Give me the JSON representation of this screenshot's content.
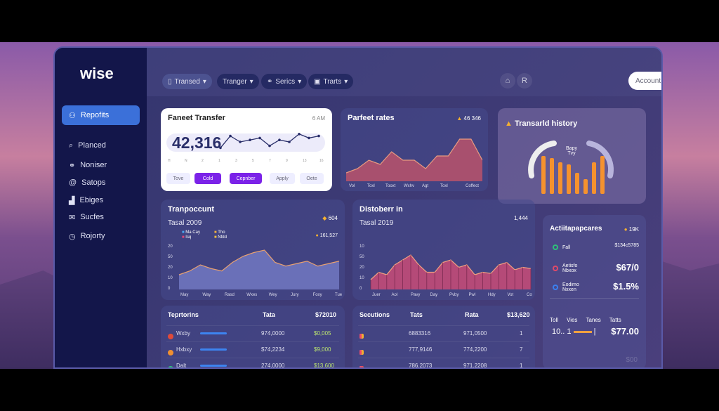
{
  "app": {
    "logo": "wise"
  },
  "sidebar": {
    "items": [
      {
        "label": "Repofits",
        "icon": "user-icon",
        "active": true
      },
      {
        "label": "Planced",
        "icon": "search-icon"
      },
      {
        "label": "Noniser",
        "icon": "link-icon"
      },
      {
        "label": "Satops",
        "icon": "at-icon"
      },
      {
        "label": "Ebiges",
        "icon": "chart-icon"
      },
      {
        "label": "Sucfes",
        "icon": "mail-icon"
      },
      {
        "label": "Rojorty",
        "icon": "clock-icon"
      }
    ]
  },
  "header": {
    "tabs": [
      {
        "label": "Transed",
        "icon": "document-icon"
      },
      {
        "label": "Tranger"
      },
      {
        "label": "Serics",
        "icon": "link-icon"
      },
      {
        "label": "Trarts",
        "icon": "calendar-icon"
      }
    ],
    "search": {
      "placeholder": "Account",
      "plus": "+"
    }
  },
  "transfer_card": {
    "title": "Faneet Transfer",
    "time": "6 AM",
    "value": "42,316",
    "x_labels": [
      "H",
      "N",
      "2",
      "1",
      "3",
      "5",
      "7",
      "9",
      "13",
      "16"
    ],
    "buttons": [
      "Tove",
      "Cold",
      "Cepnber",
      "Apply",
      "Oete"
    ]
  },
  "rates_card": {
    "title": "Parfeet rates",
    "badge": "46 346",
    "x_labels": [
      "Vol",
      "Toxl",
      "Tooxt",
      "Wxhv",
      "Agt",
      "Toxl",
      "Coffect"
    ]
  },
  "history_card": {
    "title": "Transarld history",
    "center_label": "Bapy",
    "center_sub": "Tvy"
  },
  "transpo_card": {
    "title": "Tranpoccunt",
    "subtitle": "Tasal 2009",
    "badge": "604",
    "badge2": "161,527",
    "legend": [
      {
        "label": "Ma Cay",
        "color": "#4aa8f0"
      },
      {
        "label": "Tho",
        "color": "#f0b040"
      },
      {
        "label": "Isq",
        "color": "#e04a7a"
      },
      {
        "label": "Nfdd",
        "color": "#f0c040"
      }
    ],
    "y_labels": [
      "0",
      "10",
      "20",
      "50",
      "20"
    ],
    "x_labels": [
      "May",
      "Way",
      "Rasd",
      "Wxes",
      "Wey",
      "Jury",
      "Foxy",
      "Tues"
    ]
  },
  "disto_card": {
    "title": "Distoberr in",
    "subtitle": "Tasal 2019",
    "badge": "1,444",
    "y_labels": [
      "0",
      "10",
      "20",
      "50",
      "10"
    ],
    "x_labels": [
      "Juer",
      "Aol",
      "Pavy",
      "Day",
      "Pvby",
      "Pwl",
      "Hdy",
      "Vot",
      "Cofn"
    ]
  },
  "activity_card": {
    "title": "Actiitapapcares",
    "badge": "19K",
    "items": [
      {
        "label": "Fall",
        "sub": "",
        "value": "$134c5785",
        "color": "#2ec07a"
      },
      {
        "label": "Aetisfo",
        "sub": "Nbxox",
        "value": "$67/0",
        "color": "#e04a6a"
      },
      {
        "label": "Eodimo",
        "sub": "Nxxen",
        "value": "$1.5%",
        "color": "#3b80f0"
      }
    ],
    "table_headers": [
      "Toll",
      "Vies",
      "Tanes",
      "Tatts"
    ],
    "row": {
      "c1": "10..",
      "c2": "1",
      "value": "$77.00"
    },
    "footer": "$00"
  },
  "territories_table": {
    "headers": [
      "Teprtorins",
      "Tata",
      "$72010"
    ],
    "rows": [
      {
        "name": "Wxby",
        "tata": "974,0000",
        "amount": "$0,005",
        "color": "#e04a3a"
      },
      {
        "name": "Hxbxy",
        "tata": "$74,2234",
        "amount": "$9,000",
        "color": "#f09030"
      },
      {
        "name": "Dalt",
        "tata": "274,0000",
        "amount": "$13,600",
        "color": "#2ec07a"
      }
    ]
  },
  "sections_table": {
    "headers": [
      "Secutions",
      "Tats",
      "Rata",
      "$13,620"
    ],
    "rows": [
      {
        "tats": "6883316",
        "rata": "971,0500",
        "n": "1",
        "color": "#f0b030"
      },
      {
        "tats": "777,9146",
        "rata": "774,2200",
        "n": "7",
        "color": "#f0b030"
      },
      {
        "tats": "786,2073",
        "rata": "971,2208",
        "n": "1",
        "color": "#f05050"
      }
    ]
  },
  "chart_data": [
    {
      "type": "line",
      "values": [
        2,
        8,
        5,
        6,
        7,
        3,
        6,
        5,
        9,
        7,
        8
      ]
    },
    {
      "type": "area",
      "values": [
        2,
        3,
        5,
        4,
        7,
        5,
        5,
        3,
        6,
        6,
        10,
        10,
        5
      ]
    },
    {
      "type": "bar",
      "values": [
        9,
        8.5,
        7.5,
        7,
        5,
        3.5,
        7.5,
        9
      ],
      "color": "#f5922e"
    },
    {
      "type": "area",
      "ylim": [
        0,
        40
      ],
      "values": [
        12,
        15,
        20,
        17,
        15,
        22,
        27,
        30,
        32,
        22,
        19,
        21,
        23,
        19,
        21,
        23
      ]
    },
    {
      "type": "area",
      "ylim": [
        0,
        40
      ],
      "values": [
        8,
        14,
        12,
        20,
        24,
        28,
        20,
        14,
        14,
        22,
        24,
        18,
        20,
        12,
        14,
        13,
        20,
        22,
        16,
        18,
        17
      ],
      "color": "#b54a78"
    }
  ]
}
